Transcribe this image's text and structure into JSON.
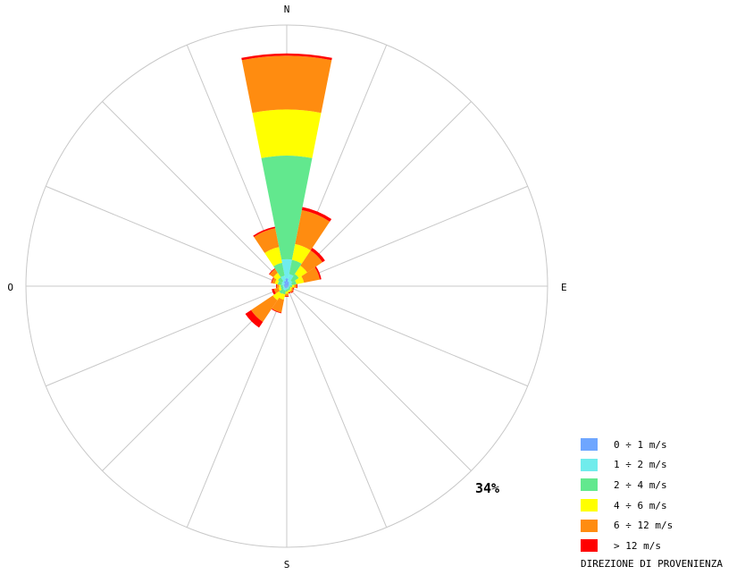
{
  "chart_data": {
    "type": "wind-rose",
    "directions": [
      "N",
      "E",
      "S",
      "O"
    ],
    "sector_count": 16,
    "max_percent": 34,
    "scale_label": "34%",
    "grid": true,
    "legend_title": "DIREZIONE DI PROVENIENZA",
    "legend_position": "bottom-right",
    "bins": [
      {
        "label": "0 ÷ 1 m/s",
        "color": "#6ea6ff"
      },
      {
        "label": "1 ÷ 2 m/s",
        "color": "#70ecec"
      },
      {
        "label": "2 ÷ 4 m/s",
        "color": "#62e88e"
      },
      {
        "label": "4 ÷ 6 m/s",
        "color": "#ffff00"
      },
      {
        "label": "6 ÷ 12 m/s",
        "color": "#ff8c10"
      },
      {
        "label": "> 12 m/s",
        "color": "#ff0000"
      }
    ],
    "sectors": [
      {
        "direction": 0,
        "cumulative": [
          1.0,
          3.5,
          17.0,
          23.0,
          30.0,
          30.3
        ]
      },
      {
        "direction": 22.5,
        "cumulative": [
          0.6,
          1.6,
          3.5,
          5.6,
          10.1,
          10.5
        ]
      },
      {
        "direction": 45,
        "cumulative": [
          0.4,
          0.9,
          1.9,
          3.2,
          5.6,
          6.0
        ]
      },
      {
        "direction": 67.5,
        "cumulative": [
          0.3,
          0.7,
          1.3,
          2.3,
          4.4,
          4.6
        ]
      },
      {
        "direction": 90,
        "cumulative": [
          0.2,
          0.4,
          0.7,
          1.0,
          1.3,
          1.4
        ]
      },
      {
        "direction": 112.5,
        "cumulative": [
          0.2,
          0.3,
          0.5,
          0.7,
          0.9,
          1.0
        ]
      },
      {
        "direction": 135,
        "cumulative": [
          0.2,
          0.4,
          0.6,
          0.8,
          1.0,
          1.1
        ]
      },
      {
        "direction": 157.5,
        "cumulative": [
          0.2,
          0.4,
          0.6,
          0.8,
          0.9,
          1.0
        ]
      },
      {
        "direction": 180,
        "cumulative": [
          0.2,
          0.4,
          0.7,
          1.0,
          1.3,
          1.4
        ]
      },
      {
        "direction": 202.5,
        "cumulative": [
          0.3,
          0.6,
          1.1,
          1.8,
          3.5,
          3.6
        ]
      },
      {
        "direction": 225,
        "cumulative": [
          0.3,
          0.6,
          1.2,
          2.2,
          5.6,
          6.5
        ]
      },
      {
        "direction": 247.5,
        "cumulative": [
          0.3,
          0.5,
          0.8,
          1.1,
          1.7,
          2.0
        ]
      },
      {
        "direction": 270,
        "cumulative": [
          0.3,
          0.5,
          0.8,
          1.0,
          1.3,
          1.4
        ]
      },
      {
        "direction": 292.5,
        "cumulative": [
          0.4,
          0.7,
          1.2,
          1.6,
          2.0,
          2.1
        ]
      },
      {
        "direction": 315,
        "cumulative": [
          0.4,
          0.8,
          1.4,
          2.1,
          2.7,
          2.8
        ]
      },
      {
        "direction": 337.5,
        "cumulative": [
          0.7,
          1.4,
          3.1,
          5.2,
          7.7,
          7.9
        ]
      }
    ]
  }
}
